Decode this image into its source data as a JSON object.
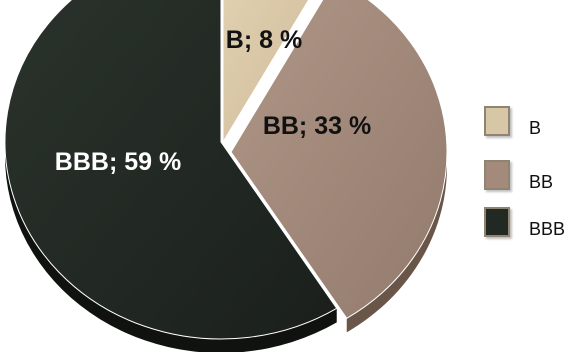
{
  "chart_data": {
    "type": "pie",
    "categories": [
      "B",
      "BB",
      "BBB"
    ],
    "values": [
      8,
      33,
      59
    ],
    "data_labels": [
      "B; 8 %",
      "BB; 33 %",
      "BBB; 59 %"
    ],
    "colors": [
      "#d8c7a6",
      "#a38a7b",
      "#222822"
    ],
    "label_colors": [
      "#111111",
      "#111111",
      "#ffffff"
    ],
    "legend_position": "right",
    "style": "3d-exploded"
  },
  "legend": [
    {
      "label": "B",
      "color": "#d8c7a6"
    },
    {
      "label": "BB",
      "color": "#a38a7b"
    },
    {
      "label": "BBB",
      "color": "#222822"
    }
  ]
}
